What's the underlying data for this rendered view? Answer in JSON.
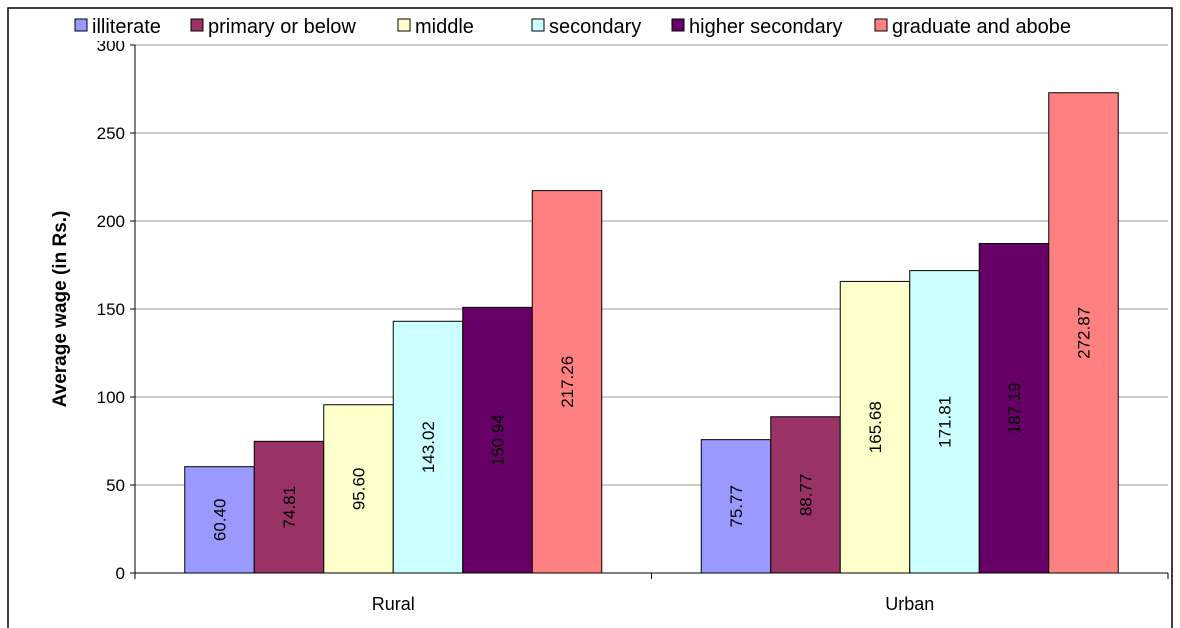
{
  "chart_data": {
    "type": "bar",
    "title": "",
    "xlabel": "",
    "ylabel": "Average wage (in Rs.)",
    "categories": [
      "Rural",
      "Urban"
    ],
    "ylim": [
      0,
      300
    ],
    "yticks": [
      0,
      50,
      100,
      150,
      200,
      250,
      300
    ],
    "grid": true,
    "legend_position": "top",
    "series": [
      {
        "name": "illiterate",
        "values": [
          60.4,
          75.77
        ],
        "labels": [
          "60.40",
          "75.77"
        ],
        "color": "#9999ff"
      },
      {
        "name": "primary or below",
        "values": [
          74.81,
          88.77
        ],
        "labels": [
          "74.81",
          "88.77"
        ],
        "color": "#993366"
      },
      {
        "name": "middle",
        "values": [
          95.6,
          165.68
        ],
        "labels": [
          "95.60",
          "165.68"
        ],
        "color": "#ffffcc"
      },
      {
        "name": "secondary",
        "values": [
          143.02,
          171.81
        ],
        "labels": [
          "143.02",
          "171.81"
        ],
        "color": "#ccffff"
      },
      {
        "name": "higher secondary",
        "values": [
          150.94,
          187.19
        ],
        "labels": [
          "150.94",
          "187.19"
        ],
        "color": "#660066"
      },
      {
        "name": "graduate and abobe",
        "values": [
          217.26,
          272.87
        ],
        "labels": [
          "217.26",
          "272.87"
        ],
        "color": "#ff8080"
      }
    ]
  }
}
